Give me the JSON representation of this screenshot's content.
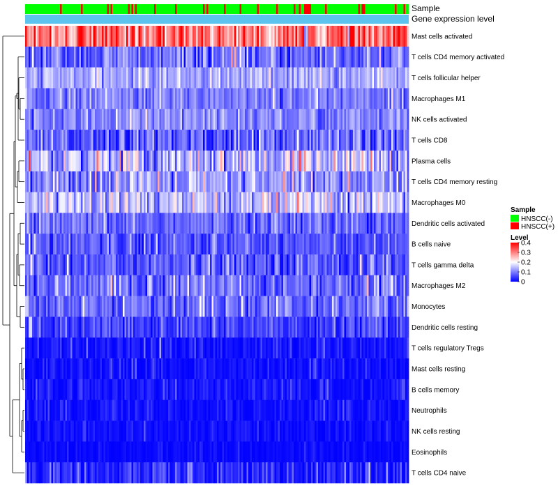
{
  "chart_data": {
    "type": "heatmap",
    "title": "",
    "n_samples": 220,
    "annotations": [
      {
        "name": "Sample",
        "type": "categorical"
      },
      {
        "name": "Gene expression level",
        "type": "continuous"
      }
    ],
    "rows": [
      {
        "label": "Mast cells activated",
        "mean": 0.3,
        "spread": 0.1
      },
      {
        "label": "T cells CD4 memory activated",
        "mean": 0.08,
        "spread": 0.07
      },
      {
        "label": "T cells follicular helper",
        "mean": 0.13,
        "spread": 0.05
      },
      {
        "label": "Macrophages M1",
        "mean": 0.1,
        "spread": 0.05
      },
      {
        "label": "NK cells activated",
        "mean": 0.1,
        "spread": 0.05
      },
      {
        "label": "T cells CD8",
        "mean": 0.07,
        "spread": 0.07
      },
      {
        "label": "Plasma cells",
        "mean": 0.14,
        "spread": 0.09
      },
      {
        "label": "T cells CD4 memory resting",
        "mean": 0.11,
        "spread": 0.07
      },
      {
        "label": "Macrophages M0",
        "mean": 0.14,
        "spread": 0.09
      },
      {
        "label": "Dendritic cells activated",
        "mean": 0.08,
        "spread": 0.05
      },
      {
        "label": "B cells naive",
        "mean": 0.07,
        "spread": 0.05
      },
      {
        "label": "T cells gamma delta",
        "mean": 0.07,
        "spread": 0.06
      },
      {
        "label": "Macrophages M2",
        "mean": 0.08,
        "spread": 0.06
      },
      {
        "label": "Monocytes",
        "mean": 0.08,
        "spread": 0.05
      },
      {
        "label": "Dendritic cells resting",
        "mean": 0.05,
        "spread": 0.05
      },
      {
        "label": "T cells regulatory  Tregs",
        "mean": 0.015,
        "spread": 0.03
      },
      {
        "label": "Mast cells resting",
        "mean": 0.01,
        "spread": 0.03
      },
      {
        "label": "B cells memory",
        "mean": 0.015,
        "spread": 0.03
      },
      {
        "label": "Neutrophils",
        "mean": 0.01,
        "spread": 0.025
      },
      {
        "label": "NK cells resting",
        "mean": 0.01,
        "spread": 0.02
      },
      {
        "label": "Eosinophils",
        "mean": 0.005,
        "spread": 0.015
      },
      {
        "label": "T cells CD4 naive",
        "mean": 0.03,
        "spread": 0.05
      }
    ],
    "legend": {
      "sample_title": "Sample",
      "sample_entries": [
        {
          "label": "HNSCC(-)",
          "color": "#00ff00"
        },
        {
          "label": "HNSCC(+)",
          "color": "#ff0000"
        }
      ],
      "level_title": "Level",
      "level_ticks": [
        "0.4",
        "0.3",
        "0.2",
        "0.1",
        "0"
      ],
      "level_values": [
        0.4,
        0.3,
        0.2,
        0.1,
        0
      ]
    },
    "color_scale": {
      "low": "#0000ff",
      "mid": "#ffffff",
      "high": "#ff0000",
      "min": 0,
      "mid_value": 0.2,
      "max": 0.4
    },
    "annotation_color": "#5cc3ef",
    "legend_placement": "right"
  }
}
